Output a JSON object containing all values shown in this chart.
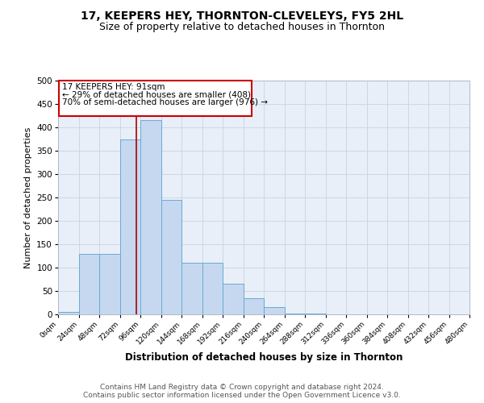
{
  "title": "17, KEEPERS HEY, THORNTON-CLEVELEYS, FY5 2HL",
  "subtitle": "Size of property relative to detached houses in Thornton",
  "xlabel": "Distribution of detached houses by size in Thornton",
  "ylabel": "Number of detached properties",
  "bin_edges": [
    0,
    24,
    48,
    72,
    96,
    120,
    144,
    168,
    192,
    216,
    240,
    264,
    288,
    312,
    336,
    360,
    384,
    408,
    432,
    456,
    480
  ],
  "bar_heights": [
    5,
    130,
    130,
    375,
    415,
    245,
    110,
    110,
    65,
    35,
    15,
    2,
    2,
    0,
    0,
    0,
    0,
    0,
    0,
    0
  ],
  "bar_color": "#c5d8f0",
  "bar_edge_color": "#6aaad4",
  "vline_x": 91,
  "vline_color": "#aa0000",
  "annotation_text_line1": "17 KEEPERS HEY: 91sqm",
  "annotation_text_line2": "← 29% of detached houses are smaller (408)",
  "annotation_text_line3": "70% of semi-detached houses are larger (976) →",
  "annotation_box_color": "#cc0000",
  "ylim": [
    0,
    500
  ],
  "xlim": [
    0,
    480
  ],
  "yticks": [
    0,
    50,
    100,
    150,
    200,
    250,
    300,
    350,
    400,
    450,
    500
  ],
  "xtick_labels": [
    "0sqm",
    "24sqm",
    "48sqm",
    "72sqm",
    "96sqm",
    "120sqm",
    "144sqm",
    "168sqm",
    "192sqm",
    "216sqm",
    "240sqm",
    "264sqm",
    "288sqm",
    "312sqm",
    "336sqm",
    "360sqm",
    "384sqm",
    "408sqm",
    "432sqm",
    "456sqm",
    "480sqm"
  ],
  "xtick_positions": [
    0,
    24,
    48,
    72,
    96,
    120,
    144,
    168,
    192,
    216,
    240,
    264,
    288,
    312,
    336,
    360,
    384,
    408,
    432,
    456,
    480
  ],
  "grid_color": "#c8d4e0",
  "bg_color": "#e8eff8",
  "footer_line1": "Contains HM Land Registry data © Crown copyright and database right 2024.",
  "footer_line2": "Contains public sector information licensed under the Open Government Licence v3.0.",
  "title_fontsize": 10,
  "subtitle_fontsize": 9,
  "xlabel_fontsize": 8.5,
  "ylabel_fontsize": 8,
  "footer_fontsize": 6.5
}
